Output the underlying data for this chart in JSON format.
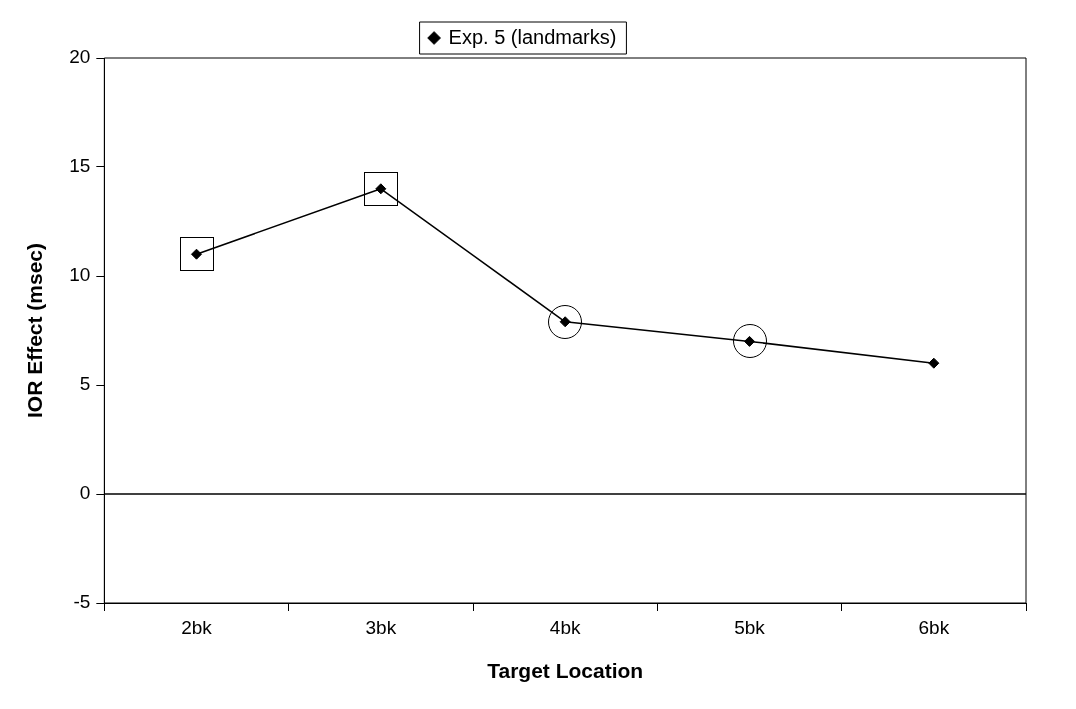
{
  "chart_data": {
    "type": "line",
    "xlabel": "Target Location",
    "ylabel": "IOR Effect (msec)",
    "categories": [
      "2bk",
      "3bk",
      "4bk",
      "5bk",
      "6bk"
    ],
    "series": [
      {
        "name": "Exp. 5 (landmarks)",
        "color": "#000000",
        "values": [
          11,
          14,
          7.9,
          7,
          6
        ]
      }
    ],
    "ylim": [
      -5,
      20
    ],
    "yticks": [
      -5,
      0,
      5,
      10,
      15,
      20
    ],
    "ref_lines": [
      {
        "axis": "y",
        "value": 0,
        "label": null,
        "color": "#000000"
      }
    ],
    "grid": false,
    "legend": "top",
    "marker": "diamond",
    "line_style": "solid"
  }
}
